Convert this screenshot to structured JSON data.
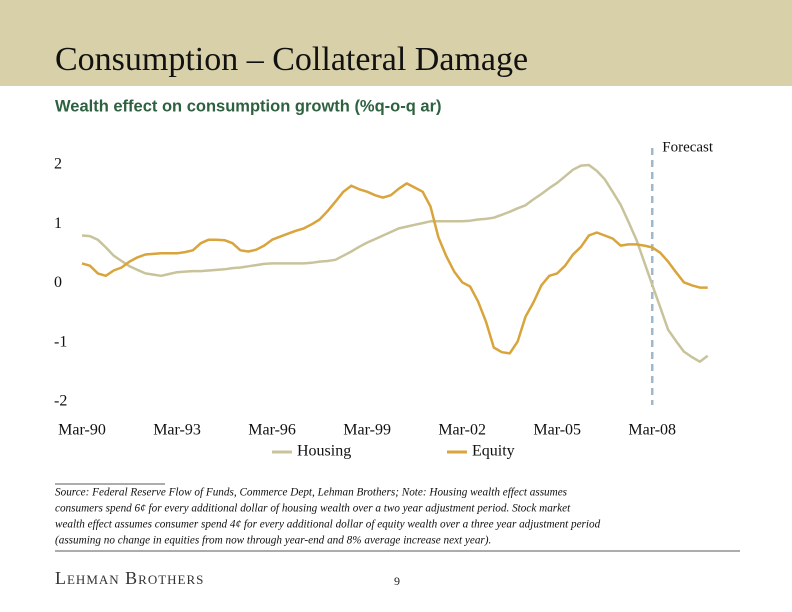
{
  "header": {
    "title": "Consumption – Collateral Damage"
  },
  "chart_data": {
    "type": "line",
    "title": "Wealth effect on consumption growth (%q-o-q ar)",
    "categories": [
      "Mar-90",
      null,
      null,
      null,
      null,
      null,
      null,
      null,
      null,
      null,
      null,
      null,
      "Mar-93",
      null,
      null,
      null,
      null,
      null,
      null,
      null,
      null,
      null,
      null,
      null,
      "Mar-96",
      null,
      null,
      null,
      null,
      null,
      null,
      null,
      null,
      null,
      null,
      null,
      "Mar-99",
      null,
      null,
      null,
      null,
      null,
      null,
      null,
      null,
      null,
      null,
      null,
      "Mar-02",
      null,
      null,
      null,
      null,
      null,
      null,
      null,
      null,
      null,
      null,
      null,
      "Mar-05",
      null,
      null,
      null,
      null,
      null,
      null,
      null,
      null,
      null,
      null,
      null,
      "Mar-08",
      null,
      null,
      null,
      null,
      null,
      null,
      null
    ],
    "series": [
      {
        "name": "Housing",
        "color": "#c9c39b",
        "values": [
          0.81,
          0.8,
          0.74,
          0.61,
          0.47,
          0.38,
          0.29,
          0.23,
          0.17,
          0.15,
          0.13,
          0.16,
          0.19,
          0.2,
          0.21,
          0.21,
          0.22,
          0.23,
          0.24,
          0.26,
          0.27,
          0.29,
          0.31,
          0.33,
          0.34,
          0.34,
          0.34,
          0.34,
          0.34,
          0.35,
          0.37,
          0.38,
          0.4,
          0.47,
          0.54,
          0.62,
          0.69,
          0.75,
          0.81,
          0.87,
          0.93,
          0.96,
          0.99,
          1.02,
          1.05,
          1.05,
          1.05,
          1.05,
          1.05,
          1.06,
          1.08,
          1.09,
          1.11,
          1.16,
          1.21,
          1.27,
          1.32,
          1.42,
          1.51,
          1.61,
          1.7,
          1.81,
          1.92,
          1.99,
          2.0,
          1.9,
          1.76,
          1.55,
          1.33,
          1.04,
          0.74,
          0.36,
          -0.02,
          -0.4,
          -0.78,
          -0.97,
          -1.15,
          -1.24,
          -1.32,
          -1.22
        ]
      },
      {
        "name": "Equity",
        "color": "#d9a43b",
        "values": [
          0.34,
          0.3,
          0.17,
          0.13,
          0.22,
          0.27,
          0.37,
          0.44,
          0.49,
          0.5,
          0.51,
          0.51,
          0.51,
          0.53,
          0.56,
          0.68,
          0.74,
          0.74,
          0.73,
          0.68,
          0.56,
          0.54,
          0.57,
          0.64,
          0.74,
          0.79,
          0.84,
          0.89,
          0.93,
          1.0,
          1.08,
          1.22,
          1.38,
          1.55,
          1.65,
          1.59,
          1.55,
          1.49,
          1.45,
          1.49,
          1.6,
          1.69,
          1.62,
          1.55,
          1.3,
          0.78,
          0.46,
          0.2,
          0.02,
          -0.05,
          -0.3,
          -0.64,
          -1.08,
          -1.16,
          -1.18,
          -0.98,
          -0.56,
          -0.32,
          -0.03,
          0.13,
          0.17,
          0.3,
          0.49,
          0.62,
          0.81,
          0.86,
          0.81,
          0.76,
          0.64,
          0.66,
          0.66,
          0.64,
          0.61,
          0.52,
          0.37,
          0.19,
          0.02,
          -0.03,
          -0.07,
          -0.07
        ]
      }
    ],
    "ylim": [
      -2,
      2
    ],
    "yticks": [
      -2,
      -1,
      0,
      1,
      2
    ],
    "grid": false,
    "legend": "bottom",
    "annotations": [
      {
        "text": "Forecast",
        "at": "Mar-08"
      }
    ]
  },
  "source": {
    "lines": [
      "Source: Federal Reserve Flow of Funds, Commerce Dept, Lehman Brothers; Note: Housing wealth effect assumes",
      "consumers spend 6¢ for every additional dollar of housing wealth over a two year adjustment period. Stock market",
      "wealth effect assumes consumer spend 4¢ for every additional dollar of equity wealth over a three year adjustment period",
      "(assuming no change in equities from now through year-end and 8% average increase next year)."
    ]
  },
  "footer": {
    "logo": "Lehman Brothers",
    "page": "9"
  }
}
